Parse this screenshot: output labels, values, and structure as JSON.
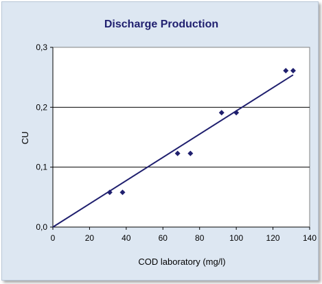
{
  "chart_data": {
    "type": "scatter",
    "title": "Discharge Production",
    "xlabel": "COD laboratory (mg/l)",
    "ylabel": "CU",
    "xlim": [
      0,
      140
    ],
    "ylim": [
      0,
      0.3
    ],
    "x_ticks": [
      "0",
      "20",
      "40",
      "60",
      "80",
      "100",
      "120",
      "140"
    ],
    "y_ticks": [
      "0,0",
      "0,1",
      "0,2",
      "0,3"
    ],
    "grid": "horizontal",
    "legend": "none",
    "series": [
      {
        "points": [
          {
            "x": 31,
            "y": 0.058
          },
          {
            "x": 38,
            "y": 0.058
          },
          {
            "x": 68,
            "y": 0.123
          },
          {
            "x": 75,
            "y": 0.123
          },
          {
            "x": 92,
            "y": 0.191
          },
          {
            "x": 100,
            "y": 0.191
          },
          {
            "x": 127,
            "y": 0.261
          },
          {
            "x": 131,
            "y": 0.261
          }
        ],
        "color": "#1f1f6e",
        "marker": "diamond"
      }
    ],
    "trendline": {
      "from": {
        "x": 0,
        "y": 0.0
      },
      "to": {
        "x": 131,
        "y": 0.254
      },
      "color": "#1f1f6e"
    }
  }
}
